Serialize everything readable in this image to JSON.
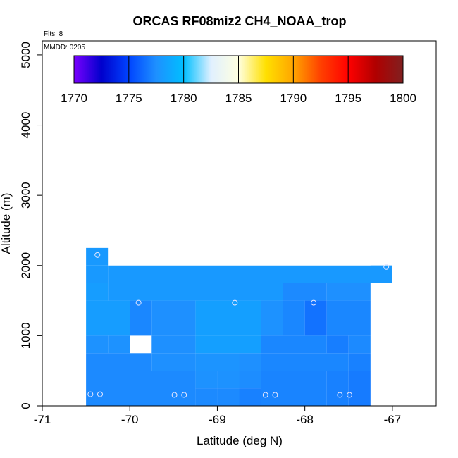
{
  "chart_data": {
    "type": "heatmap",
    "title": "ORCAS RF08miz2 CH4_NOAA_trop",
    "flights_label": "Flts: 8",
    "date_label": "MMDD: 0205",
    "xlabel": "Latitude (deg N)",
    "ylabel": "Altitude (m)",
    "xlim": [
      -71,
      -66.5
    ],
    "ylim": [
      0,
      5200
    ],
    "x_ticks": [
      -71,
      -70,
      -69,
      -68,
      -67
    ],
    "y_ticks": [
      0,
      1000,
      2000,
      3000,
      4000,
      5000
    ],
    "colorbar": {
      "min": 1770,
      "max": 1800,
      "ticks": [
        1770,
        1775,
        1780,
        1785,
        1790,
        1795,
        1800
      ],
      "colors": [
        "#7a00ff",
        "#0000cc",
        "#0044ff",
        "#1e90ff",
        "#00bfff",
        "#e0f0ff",
        "#ffffe0",
        "#ffe000",
        "#ffa500",
        "#ff4000",
        "#ff0000",
        "#b00000",
        "#802020"
      ]
    },
    "cells": [
      {
        "x0": -70.5,
        "x1": -70.25,
        "y0": 2000,
        "y1": 2250,
        "value": 1778.0
      },
      {
        "x0": -70.5,
        "x1": -70.25,
        "y0": 1750,
        "y1": 2000,
        "value": 1778.0
      },
      {
        "x0": -70.25,
        "x1": -67.0,
        "y0": 1750,
        "y1": 2000,
        "value": 1778.0
      },
      {
        "x0": -67.25,
        "x1": -67.0,
        "y0": 1750,
        "y1": 2000,
        "value": 1778.0
      },
      {
        "x0": -70.5,
        "x1": -70.25,
        "y0": 1500,
        "y1": 1750,
        "value": 1778.2
      },
      {
        "x0": -70.25,
        "x1": -68.25,
        "y0": 1500,
        "y1": 1750,
        "value": 1778.0
      },
      {
        "x0": -68.25,
        "x1": -67.75,
        "y0": 1500,
        "y1": 1750,
        "value": 1777.3
      },
      {
        "x0": -67.75,
        "x1": -67.25,
        "y0": 1500,
        "y1": 1750,
        "value": 1777.5
      },
      {
        "x0": -70.5,
        "x1": -70.0,
        "y0": 1000,
        "y1": 1500,
        "value": 1778.2
      },
      {
        "x0": -70.0,
        "x1": -69.75,
        "y0": 1000,
        "y1": 1500,
        "value": 1777.2
      },
      {
        "x0": -69.75,
        "x1": -69.25,
        "y0": 1000,
        "y1": 1500,
        "value": 1777.5
      },
      {
        "x0": -69.25,
        "x1": -68.5,
        "y0": 1000,
        "y1": 1500,
        "value": 1778.3
      },
      {
        "x0": -68.5,
        "x1": -68.25,
        "y0": 1000,
        "y1": 1500,
        "value": 1777.6
      },
      {
        "x0": -68.25,
        "x1": -68.0,
        "y0": 1000,
        "y1": 1500,
        "value": 1777.2
      },
      {
        "x0": -68.0,
        "x1": -67.75,
        "y0": 1000,
        "y1": 1500,
        "value": 1776.5
      },
      {
        "x0": -67.75,
        "x1": -67.25,
        "y0": 1000,
        "y1": 1500,
        "value": 1777.2
      },
      {
        "x0": -70.5,
        "x1": -70.25,
        "y0": 750,
        "y1": 1000,
        "value": 1777.6
      },
      {
        "x0": -70.25,
        "x1": -70.0,
        "y0": 750,
        "y1": 1000,
        "value": 1777.6
      },
      {
        "x0": -69.75,
        "x1": -69.25,
        "y0": 750,
        "y1": 1000,
        "value": 1777.5
      },
      {
        "x0": -69.25,
        "x1": -68.5,
        "y0": 750,
        "y1": 1000,
        "value": 1778.3
      },
      {
        "x0": -68.5,
        "x1": -67.75,
        "y0": 750,
        "y1": 1000,
        "value": 1777.2
      },
      {
        "x0": -67.75,
        "x1": -67.5,
        "y0": 750,
        "y1": 1000,
        "value": 1776.9
      },
      {
        "x0": -67.5,
        "x1": -67.25,
        "y0": 750,
        "y1": 1000,
        "value": 1777.3
      },
      {
        "x0": -70.5,
        "x1": -69.75,
        "y0": 500,
        "y1": 750,
        "value": 1777.3
      },
      {
        "x0": -69.75,
        "x1": -69.25,
        "y0": 500,
        "y1": 750,
        "value": 1777.5
      },
      {
        "x0": -69.25,
        "x1": -68.75,
        "y0": 500,
        "y1": 750,
        "value": 1777.7
      },
      {
        "x0": -68.75,
        "x1": -68.5,
        "y0": 500,
        "y1": 750,
        "value": 1777.5
      },
      {
        "x0": -68.5,
        "x1": -67.5,
        "y0": 500,
        "y1": 750,
        "value": 1777.2
      },
      {
        "x0": -67.5,
        "x1": -67.25,
        "y0": 500,
        "y1": 750,
        "value": 1777.0
      },
      {
        "x0": -70.5,
        "x1": -69.25,
        "y0": 0,
        "y1": 500,
        "value": 1777.3
      },
      {
        "x0": -69.25,
        "x1": -69.0,
        "y0": 250,
        "y1": 500,
        "value": 1777.6
      },
      {
        "x0": -69.25,
        "x1": -69.0,
        "y0": 0,
        "y1": 250,
        "value": 1777.3
      },
      {
        "x0": -69.0,
        "x1": -68.75,
        "y0": 250,
        "y1": 500,
        "value": 1777.6
      },
      {
        "x0": -69.0,
        "x1": -68.75,
        "y0": 0,
        "y1": 250,
        "value": 1777.3
      },
      {
        "x0": -68.75,
        "x1": -68.5,
        "y0": 250,
        "y1": 500,
        "value": 1777.4
      },
      {
        "x0": -68.75,
        "x1": -68.5,
        "y0": 0,
        "y1": 250,
        "value": 1777.0
      },
      {
        "x0": -68.5,
        "x1": -67.75,
        "y0": 0,
        "y1": 500,
        "value": 1777.1
      },
      {
        "x0": -67.75,
        "x1": -67.5,
        "y0": 0,
        "y1": 500,
        "value": 1777.0
      },
      {
        "x0": -67.5,
        "x1": -67.25,
        "y0": 0,
        "y1": 500,
        "value": 1776.8
      }
    ],
    "points": [
      {
        "x": -70.37,
        "y": 2150
      },
      {
        "x": -67.07,
        "y": 1980
      },
      {
        "x": -69.9,
        "y": 1470
      },
      {
        "x": -68.8,
        "y": 1470
      },
      {
        "x": -67.9,
        "y": 1470
      },
      {
        "x": -70.45,
        "y": 165
      },
      {
        "x": -70.34,
        "y": 165
      },
      {
        "x": -69.49,
        "y": 155
      },
      {
        "x": -69.38,
        "y": 155
      },
      {
        "x": -68.45,
        "y": 155
      },
      {
        "x": -68.34,
        "y": 155
      },
      {
        "x": -67.6,
        "y": 155
      },
      {
        "x": -67.49,
        "y": 155
      }
    ]
  }
}
